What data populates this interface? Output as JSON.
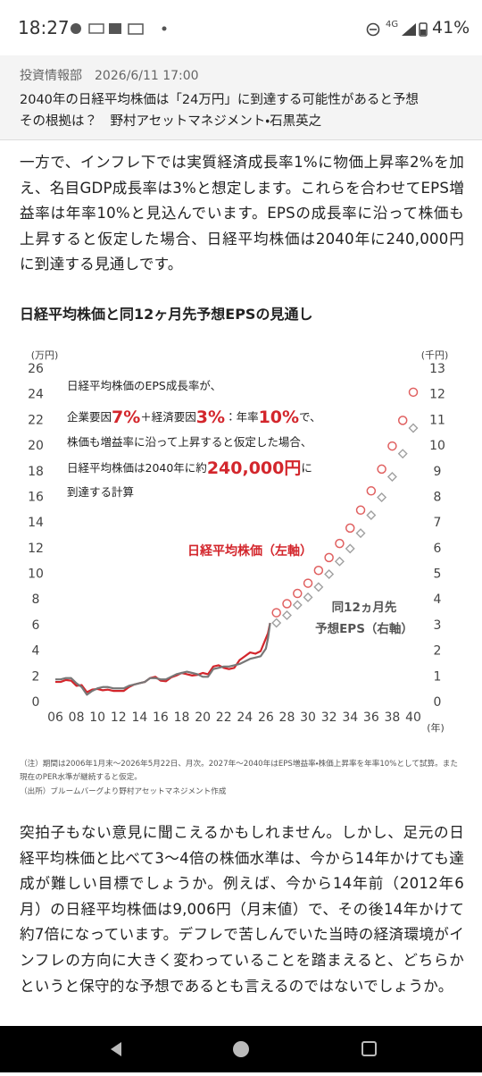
{
  "status_bar": {
    "time": "18:27",
    "network": "4G",
    "battery": "41%"
  },
  "header": {
    "byline": "投資情報部　2026/6/11 17:00",
    "title_lines": [
      "2040年の日経平均株価は「24万円」に到達する可能性があると予想",
      "その根拠は？　野村アセットマネジメント・石黒英之"
    ]
  },
  "paragraphs": [
    "一方で、インフレ下では実質経済成長率1%に物価上昇率2%を加え、名目GDP成長率は3%と想定します。これらを合わせてEPS増益率は年率10%と見込んでいます。EPSの成長率に沿って株価も上昇すると仮定した場合、日経平均株価は2040年に240,000円に到達する見通しです。",
    "突拍子もない意見に聞こえるかもしれません。しかし、足元の日経平均株価と比べて3～4倍の株価水準は、今から14年かけても達成が難しい目標でしょうか。例えば、今から14年前（2012年6月）の日経平均株価は9,006円（月末値）で、その後14年かけて約7倍になっています。デフレで苦しんでいた当時の経済環境がインフレの方向に大きく変わっていることを踏まえると、どちらかというと保守的な予想であるとも言えるのではないでしょうか。"
  ],
  "chart_heading": "日経平均株価と同12ヶ月先予想EPSの見通し",
  "chart_data": {
    "type": "line",
    "y_unit": "(万円)",
    "y2_unit": "(千円)",
    "x_unit": "(年)",
    "xlim": [
      2006,
      2040
    ],
    "xticks": [
      {
        "value": 2006,
        "label": "06"
      },
      {
        "value": 2008,
        "label": "08"
      },
      {
        "value": 2010,
        "label": "10"
      },
      {
        "value": 2012,
        "label": "12"
      },
      {
        "value": 2014,
        "label": "14"
      },
      {
        "value": 2016,
        "label": "16"
      },
      {
        "value": 2018,
        "label": "18"
      },
      {
        "value": 2020,
        "label": "20"
      },
      {
        "value": 2022,
        "label": "22"
      },
      {
        "value": 2024,
        "label": "24"
      },
      {
        "value": 2026,
        "label": "26"
      },
      {
        "value": 2028,
        "label": "28"
      },
      {
        "value": 2030,
        "label": "30"
      },
      {
        "value": 2032,
        "label": "32"
      },
      {
        "value": 2034,
        "label": "34"
      },
      {
        "value": 2036,
        "label": "36"
      },
      {
        "value": 2038,
        "label": "38"
      },
      {
        "value": 2040,
        "label": "40"
      }
    ],
    "ylim": [
      0,
      26
    ],
    "yticks": [
      0,
      2,
      4,
      6,
      8,
      10,
      12,
      14,
      16,
      18,
      20,
      22,
      24,
      26
    ],
    "y2lim": [
      0,
      13
    ],
    "y2ticks": [
      0,
      1,
      2,
      3,
      4,
      5,
      6,
      7,
      8,
      9,
      10,
      11,
      12,
      13
    ],
    "series": [
      {
        "name": "日経平均株価（左軸）",
        "color": "#d3262c",
        "x": [
          2006,
          2006.5,
          2007,
          2007.5,
          2008,
          2008.5,
          2009,
          2009.5,
          2010,
          2010.5,
          2011,
          2011.5,
          2012,
          2012.5,
          2013,
          2013.5,
          2014,
          2014.5,
          2015,
          2015.5,
          2016,
          2016.5,
          2017,
          2017.5,
          2018,
          2018.5,
          2019,
          2019.5,
          2020,
          2020.5,
          2021,
          2021.5,
          2022,
          2022.5,
          2023,
          2023.5,
          2024,
          2024.5,
          2025,
          2025.5,
          2026,
          2026.2,
          2026.4
        ],
        "values": [
          1.6,
          1.6,
          1.75,
          1.7,
          1.3,
          1.35,
          0.8,
          1.0,
          1.05,
          0.95,
          1.0,
          0.9,
          0.9,
          0.9,
          1.2,
          1.4,
          1.5,
          1.6,
          1.9,
          2.0,
          1.7,
          1.65,
          1.95,
          2.1,
          2.3,
          2.2,
          2.1,
          2.15,
          2.3,
          2.2,
          2.8,
          2.9,
          2.7,
          2.6,
          2.7,
          3.3,
          3.6,
          3.9,
          3.8,
          4.0,
          5.0,
          5.4,
          6.2
        ]
      },
      {
        "name": "同12ヵ月先\n予想EPS（右軸）",
        "color": "#777777",
        "axis": "y2",
        "x": [
          2006,
          2006.5,
          2007,
          2007.5,
          2008,
          2008.5,
          2009,
          2009.5,
          2010,
          2010.5,
          2011,
          2011.5,
          2012,
          2012.5,
          2013,
          2013.5,
          2014,
          2014.5,
          2015,
          2015.5,
          2016,
          2016.5,
          2017,
          2017.5,
          2018,
          2018.5,
          2019,
          2019.5,
          2020,
          2020.5,
          2021,
          2021.5,
          2022,
          2022.5,
          2023,
          2023.5,
          2024,
          2024.5,
          2025,
          2025.5,
          2026,
          2026.2,
          2026.4
        ],
        "values": [
          0.9,
          0.9,
          0.95,
          0.95,
          0.75,
          0.6,
          0.3,
          0.45,
          0.55,
          0.6,
          0.6,
          0.55,
          0.55,
          0.55,
          0.65,
          0.7,
          0.75,
          0.8,
          0.95,
          0.95,
          0.9,
          0.9,
          1.0,
          1.1,
          1.15,
          1.2,
          1.15,
          1.1,
          1.0,
          1.0,
          1.3,
          1.35,
          1.4,
          1.4,
          1.45,
          1.5,
          1.6,
          1.7,
          1.75,
          1.8,
          2.1,
          2.5,
          3.1
        ]
      },
      {
        "color": "#e06060",
        "marker": "circle",
        "x": [
          2027,
          2028,
          2029,
          2030,
          2031,
          2032,
          2033,
          2034,
          2035,
          2036,
          2037,
          2038,
          2039,
          2040
        ],
        "values": [
          7.0,
          7.7,
          8.5,
          9.3,
          10.3,
          11.3,
          12.4,
          13.6,
          15.0,
          16.5,
          18.2,
          20.0,
          22.0,
          24.2
        ]
      },
      {
        "color": "#a0a0a0",
        "axis": "y2",
        "marker": "diamond",
        "x": [
          2027,
          2028,
          2029,
          2030,
          2031,
          2032,
          2033,
          2034,
          2035,
          2036,
          2037,
          2038,
          2039,
          2040
        ],
        "values": [
          3.1,
          3.4,
          3.8,
          4.1,
          4.5,
          5.0,
          5.5,
          6.0,
          6.6,
          7.3,
          8.0,
          8.8,
          9.7,
          10.7
        ]
      }
    ],
    "annotation_lines": [
      [
        {
          "text": "日経平均株価のEPS成長率が、",
          "highlight": false
        }
      ],
      [
        {
          "text": "企業要因",
          "highlight": false
        },
        {
          "text": "7%",
          "highlight": true
        },
        {
          "text": "＋経済要因",
          "highlight": false
        },
        {
          "text": "3%",
          "highlight": true
        },
        {
          "text": "：年率",
          "highlight": false
        },
        {
          "text": "10%",
          "highlight": true
        },
        {
          "text": "で、",
          "highlight": false
        }
      ],
      [
        {
          "text": "株価も増益率に沿って上昇すると仮定した場合、",
          "highlight": false
        }
      ],
      [
        {
          "text": "日経平均株価は2040年に約",
          "highlight": false
        },
        {
          "text": "240,000円",
          "highlight": true
        },
        {
          "text": "に",
          "highlight": false
        }
      ],
      [
        {
          "text": "到達する計算",
          "highlight": false
        }
      ]
    ]
  },
  "chart_notes": [
    "（注）期間は2006年1月末～2026年5月22日、月次。2027年～2040年はEPS増益率・株価上昇率を年率10%として試算。また現在のPER水準が継続すると仮定。",
    "（出所）ブルームバーグより野村アセットマネジメント作成"
  ]
}
